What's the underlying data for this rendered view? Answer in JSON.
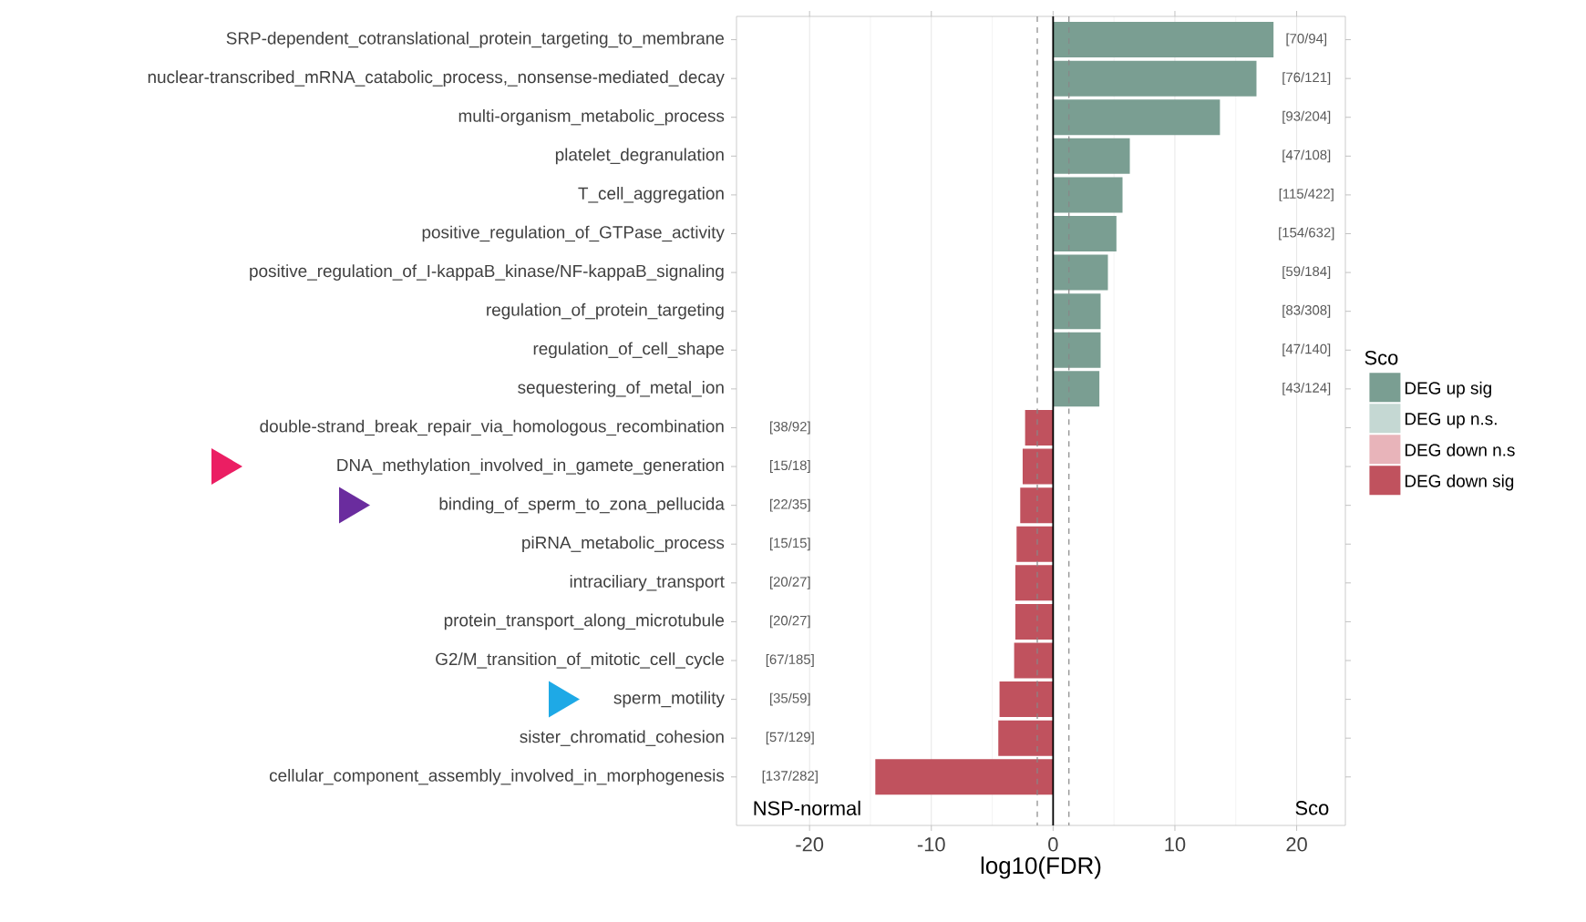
{
  "chart_data": {
    "type": "bar",
    "orientation": "horizontal",
    "xlabel": "log10(FDR)",
    "legend_title": "Sco",
    "legend": "right",
    "grid": "x",
    "categories": [
      "SRP-dependent_cotranslational_protein_targeting_to_membrane",
      "nuclear-transcribed_mRNA_catabolic_process,_nonsense-mediated_decay",
      "multi-organism_metabolic_process",
      "platelet_degranulation",
      "T_cell_aggregation",
      "positive_regulation_of_GTPase_activity",
      "positive_regulation_of_I-kappaB_kinase/NF-kappaB_signaling",
      "regulation_of_protein_targeting",
      "regulation_of_cell_shape",
      "sequestering_of_metal_ion",
      "double-strand_break_repair_via_homologous_recombination",
      "DNA_methylation_involved_in_gamete_generation",
      "binding_of_sperm_to_zona_pellucida",
      "piRNA_metabolic_process",
      "intraciliary_transport",
      "protein_transport_along_microtubule",
      "G2/M_transition_of_mitotic_cell_cycle",
      "sperm_motility",
      "sister_chromatid_cohesion",
      "cellular_component_assembly_involved_in_morphogenesis"
    ],
    "series": [
      {
        "name": "DEG up sig",
        "color": "#7a9e92",
        "values": [
          18.1,
          16.7,
          13.7,
          6.3,
          5.7,
          5.2,
          4.5,
          3.9,
          3.9,
          3.8,
          null,
          null,
          null,
          null,
          null,
          null,
          null,
          null,
          null,
          null
        ],
        "value_labels": [
          "[70/94]",
          "[76/121]",
          "[93/204]",
          "[47/108]",
          "[115/422]",
          "[154/632]",
          "[59/184]",
          "[83/308]",
          "[47/140]",
          "[43/124]",
          null,
          null,
          null,
          null,
          null,
          null,
          null,
          null,
          null,
          null
        ]
      },
      {
        "name": "DEG up n.s.",
        "color": "#c5d8d3",
        "values": [
          null,
          null,
          null,
          null,
          null,
          null,
          null,
          null,
          null,
          null,
          null,
          null,
          null,
          null,
          null,
          null,
          null,
          null,
          null,
          null
        ]
      },
      {
        "name": "DEG down n.s",
        "color": "#e8b4ba",
        "values": [
          null,
          null,
          null,
          null,
          null,
          null,
          null,
          null,
          null,
          null,
          null,
          null,
          null,
          null,
          null,
          null,
          null,
          null,
          null,
          null
        ]
      },
      {
        "name": "DEG down sig",
        "color": "#c0525e",
        "values": [
          null,
          null,
          null,
          null,
          null,
          null,
          null,
          null,
          null,
          null,
          -2.3,
          -2.5,
          -2.7,
          -3.0,
          -3.1,
          -3.1,
          -3.2,
          -4.4,
          -4.5,
          -14.6
        ],
        "value_labels": [
          null,
          null,
          null,
          null,
          null,
          null,
          null,
          null,
          null,
          null,
          "[38/92]",
          "[15/18]",
          "[22/35]",
          "[15/15]",
          "[20/27]",
          "[20/27]",
          "[67/185]",
          "[35/59]",
          "[57/129]",
          "[137/282]"
        ]
      }
    ],
    "xlim": [
      -26,
      24
    ],
    "xticks": [
      -20,
      -10,
      0,
      10,
      20
    ],
    "ref_lines": [
      {
        "axis": "x",
        "value": 0,
        "color": "#000000",
        "line_style": "solid"
      },
      {
        "axis": "x",
        "value": -1.3,
        "color": "#888888",
        "line_style": "dashed"
      },
      {
        "axis": "x",
        "value": 1.3,
        "color": "#888888",
        "line_style": "dashed"
      }
    ],
    "annotations": [
      "NSP-normal",
      "Sco"
    ]
  }
}
